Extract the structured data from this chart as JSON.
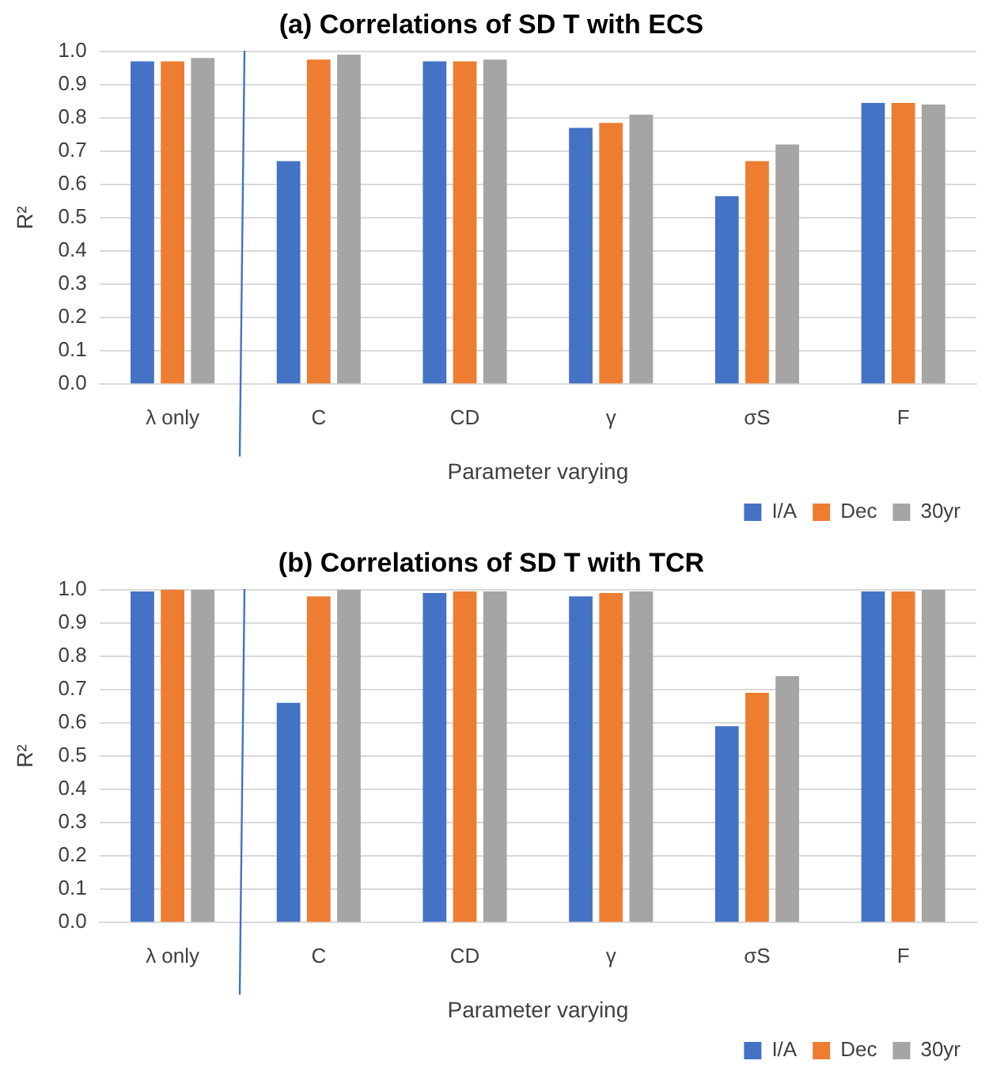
{
  "chart_data": [
    {
      "type": "bar",
      "title": "(a) Correlations of SD T with ECS",
      "xlabel": "Parameter varying",
      "ylabel": "R²",
      "categories": [
        "λ only",
        "C",
        "CD",
        "γ",
        "σS",
        "F"
      ],
      "series": [
        {
          "name": "I/A",
          "color": "#4472c4",
          "values": [
            0.97,
            0.67,
            0.97,
            0.77,
            0.565,
            0.845
          ]
        },
        {
          "name": "Dec",
          "color": "#ed7d31",
          "values": [
            0.97,
            0.975,
            0.97,
            0.785,
            0.67,
            0.845
          ]
        },
        {
          "name": "30yr",
          "color": "#a5a5a5",
          "values": [
            0.98,
            0.99,
            0.975,
            0.81,
            0.72,
            0.84
          ]
        }
      ],
      "ylim": [
        0,
        1
      ],
      "yticks": [
        {
          "value": 0,
          "label": "0.0"
        },
        {
          "value": 0.1,
          "label": "0.1"
        },
        {
          "value": 0.2,
          "label": "0.2"
        },
        {
          "value": 0.3,
          "label": "0.3"
        },
        {
          "value": 0.4,
          "label": "0.4"
        },
        {
          "value": 0.5,
          "label": "0.5"
        },
        {
          "value": 0.6,
          "label": "0.6"
        },
        {
          "value": 0.7,
          "label": "0.7"
        },
        {
          "value": 0.8,
          "label": "0.8"
        },
        {
          "value": 0.9,
          "label": "0.9"
        },
        {
          "value": 1,
          "label": "1.0"
        }
      ],
      "grid": "y",
      "legend": "bottom right"
    },
    {
      "type": "bar",
      "title": "(b) Correlations of SD T with TCR",
      "xlabel": "Parameter varying",
      "ylabel": "R²",
      "categories": [
        "λ only",
        "C",
        "CD",
        "γ",
        "σS",
        "F"
      ],
      "series": [
        {
          "name": "I/A",
          "color": "#4472c4",
          "values": [
            0.995,
            0.66,
            0.99,
            0.98,
            0.59,
            0.995
          ]
        },
        {
          "name": "Dec",
          "color": "#ed7d31",
          "values": [
            1,
            0.98,
            0.995,
            0.99,
            0.69,
            0.995
          ]
        },
        {
          "name": "30yr",
          "color": "#a5a5a5",
          "values": [
            1,
            1,
            0.995,
            0.995,
            0.74,
            1
          ]
        }
      ],
      "ylim": [
        0,
        1
      ],
      "yticks": [
        {
          "value": 0,
          "label": "0.0"
        },
        {
          "value": 0.1,
          "label": "0.1"
        },
        {
          "value": 0.2,
          "label": "0.2"
        },
        {
          "value": 0.3,
          "label": "0.3"
        },
        {
          "value": 0.4,
          "label": "0.4"
        },
        {
          "value": 0.5,
          "label": "0.5"
        },
        {
          "value": 0.6,
          "label": "0.6"
        },
        {
          "value": 0.7,
          "label": "0.7"
        },
        {
          "value": 0.8,
          "label": "0.8"
        },
        {
          "value": 0.9,
          "label": "0.9"
        },
        {
          "value": 1,
          "label": "1.0"
        }
      ],
      "grid": "y",
      "legend": "bottom right"
    }
  ]
}
